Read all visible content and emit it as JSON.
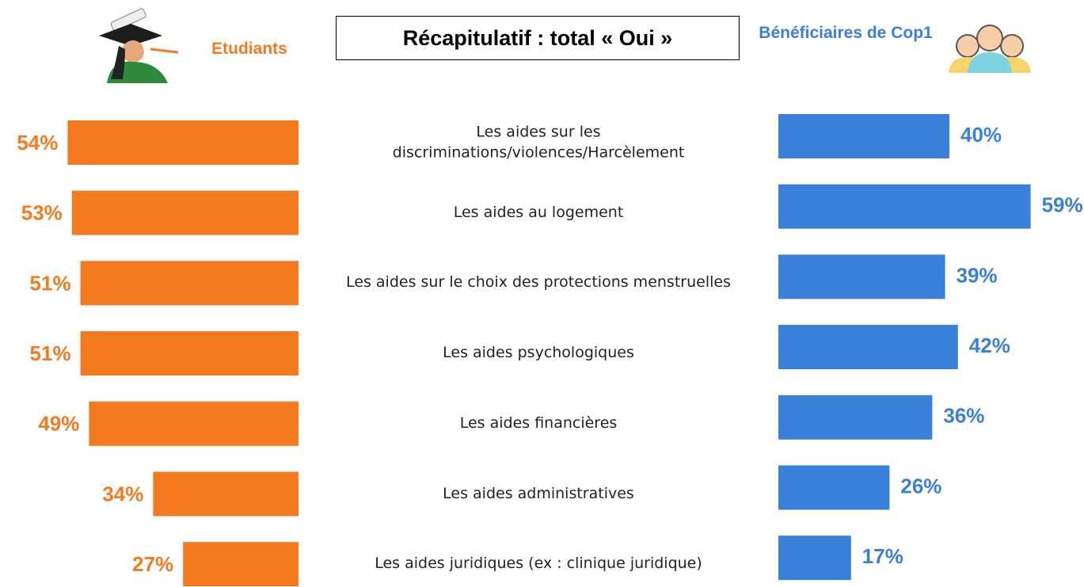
{
  "chart_data": {
    "type": "butterfly_bar",
    "title": "Récapitulatif : total « Oui »",
    "categories": [
      "Les aides sur les discriminations/violences/Harcèlement",
      "Les aides au logement",
      "Les aides sur le choix des protections menstruelles",
      "Les aides psychologiques",
      "Les aides financières",
      "Les aides administratives",
      "Les aides juridiques (ex : clinique juridique)"
    ],
    "series": [
      {
        "name": "Etudiants",
        "color": "#f47a20",
        "values": [
          54,
          53,
          51,
          51,
          49,
          34,
          27
        ],
        "value_labels": [
          "54%",
          "53%",
          "51%",
          "51%",
          "49%",
          "34%",
          "27%"
        ]
      },
      {
        "name": "Bénéficiaires de Cop1",
        "color": "#3a7fd8",
        "values": [
          40,
          59,
          39,
          42,
          36,
          26,
          17
        ],
        "value_labels": [
          "40%",
          "59%",
          "39%",
          "42%",
          "36%",
          "26%",
          "17%"
        ]
      }
    ]
  }
}
